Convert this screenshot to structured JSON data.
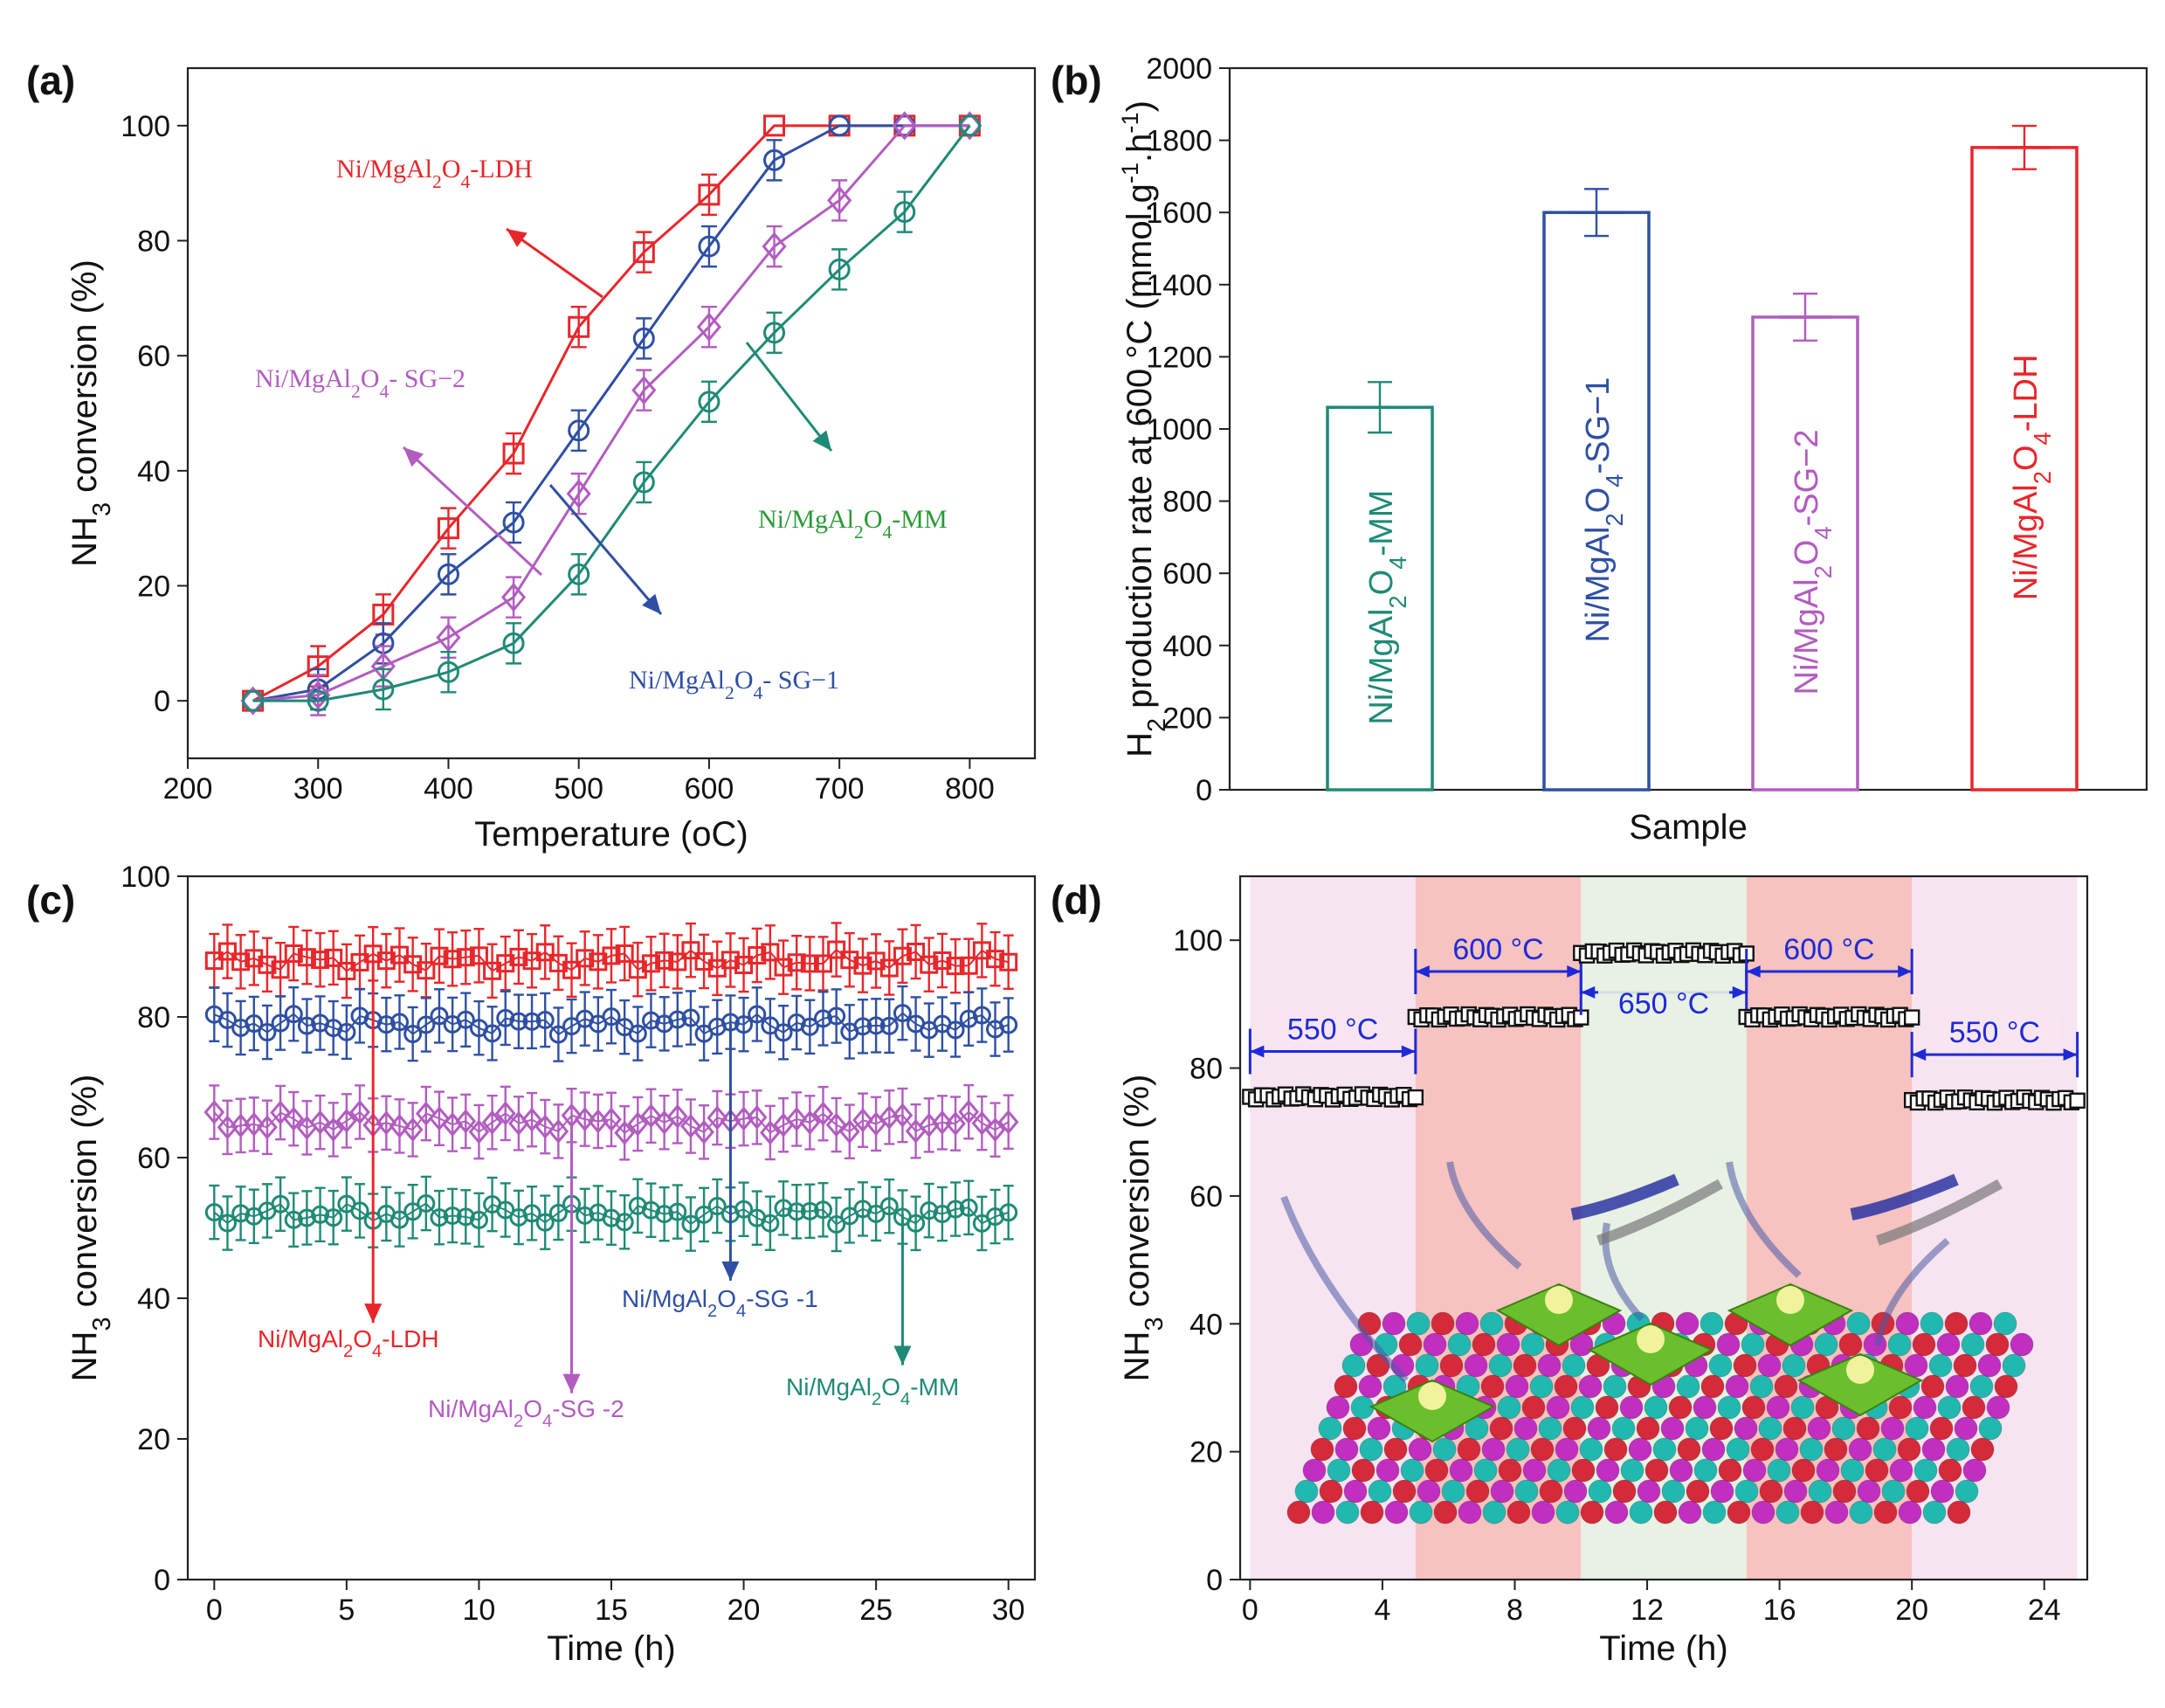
{
  "colors": {
    "red": "#e8262a",
    "blue": "#2e4fa3",
    "purple": "#b25cc0",
    "green": "#1f8a76",
    "black": "#111111",
    "temp_blue": "#1f2ad6",
    "zone_pink": "#f7e4f1",
    "zone_red": "#f6c3c1",
    "zone_green": "#e8f1e3"
  },
  "chart_data": [
    {
      "panel": "(a)",
      "type": "line",
      "xlabel": "Temperature (°C)",
      "ylabel": "NH3 conversion (%)",
      "xlim": [
        200,
        850
      ],
      "ylim": [
        -10,
        110
      ],
      "xticks": [
        "200",
        "300",
        "400",
        "500",
        "600",
        "700",
        "800"
      ],
      "yticks": [
        "0",
        "20",
        "40",
        "60",
        "80",
        "100"
      ],
      "x": [
        250,
        300,
        350,
        400,
        450,
        500,
        550,
        600,
        650,
        700,
        750,
        800
      ],
      "series": [
        {
          "name": "Ni/MgAl2O4-LDH",
          "color": "red",
          "marker": "square",
          "values": [
            0,
            6,
            15,
            30,
            43,
            65,
            78,
            88,
            100,
            100,
            100,
            100
          ]
        },
        {
          "name": "Ni/MgAl2O4- SG−1",
          "color": "blue",
          "marker": "circle",
          "values": [
            0,
            2,
            10,
            22,
            31,
            47,
            63,
            79,
            94,
            100,
            100,
            100
          ]
        },
        {
          "name": "Ni/MgAl2O4- SG−2",
          "color": "purple",
          "marker": "diamond",
          "values": [
            0,
            1,
            6,
            11,
            18,
            36,
            54,
            65,
            79,
            87,
            100,
            100
          ]
        },
        {
          "name": "Ni/MgAl2O4-MM",
          "color": "green",
          "marker": "circle",
          "values": [
            0,
            0,
            2,
            5,
            10,
            22,
            38,
            52,
            64,
            75,
            85,
            100
          ]
        }
      ],
      "annotations": [
        "Ni/MgAl2O4-LDH",
        "Ni/MgAl2O4- SG−2",
        "Ni/MgAl2O4-MM",
        "Ni/MgAl2O4- SG−1"
      ]
    },
    {
      "panel": "(b)",
      "type": "bar",
      "xlabel": "Sample",
      "ylabel": "H2 production rate at 600 °C (mmol.g-1.h-1)",
      "ylim": [
        0,
        2000
      ],
      "yticks": [
        "0",
        "200",
        "400",
        "600",
        "800",
        "1000",
        "1200",
        "1400",
        "1600",
        "1800",
        "2000"
      ],
      "categories": [
        "Ni/MgAl2O4-MM",
        "Ni/MgAl2O4-SG−1",
        "Ni/MgAl2O4-SG−2",
        "Ni/MgAl2O4-LDH"
      ],
      "values": [
        1060,
        1600,
        1310,
        1780
      ],
      "errors": [
        70,
        65,
        65,
        60
      ],
      "bar_colors": [
        "green",
        "blue",
        "purple",
        "red"
      ]
    },
    {
      "panel": "(c)",
      "type": "line",
      "xlabel": "Time (h)",
      "ylabel": "NH3 conversion (%)",
      "xlim": [
        -1,
        31
      ],
      "ylim": [
        0,
        100
      ],
      "xticks": [
        "0",
        "5",
        "10",
        "15",
        "20",
        "25",
        "30"
      ],
      "yticks": [
        "0",
        "20",
        "40",
        "60",
        "80",
        "100"
      ],
      "series": [
        {
          "name": "Ni/MgAl2O4-LDH",
          "color": "red",
          "marker": "square",
          "mean": 88
        },
        {
          "name": "Ni/MgAl2O4-SG -1",
          "color": "blue",
          "marker": "circle",
          "mean": 79
        },
        {
          "name": "Ni/MgAl2O4-SG -2",
          "color": "purple",
          "marker": "diamond",
          "mean": 65
        },
        {
          "name": "Ni/MgAl2O4-MM",
          "color": "green",
          "marker": "circle",
          "mean": 52
        }
      ],
      "annotations": [
        "Ni/MgAl2O4-LDH",
        "Ni/MgAl2O4-SG -2",
        "Ni/MgAl2O4-SG -1",
        "Ni/MgAl2O4-MM"
      ]
    },
    {
      "panel": "(d)",
      "type": "scatter",
      "xlabel": "Time (h)",
      "ylabel": "NH3 conversion (%)",
      "xlim": [
        -0.3,
        25.3
      ],
      "ylim": [
        0,
        110
      ],
      "xticks": [
        "0",
        "4",
        "8",
        "12",
        "16",
        "20",
        "24"
      ],
      "yticks": [
        "0",
        "20",
        "40",
        "60",
        "80",
        "100"
      ],
      "segments": [
        {
          "label": "550 °C",
          "x": [
            0,
            5
          ],
          "value": 75.5,
          "zone": "pink"
        },
        {
          "label": "600 °C",
          "x": [
            5,
            10
          ],
          "value": 88,
          "zone": "red"
        },
        {
          "label": "650 °C",
          "x": [
            10,
            15
          ],
          "value": 98,
          "zone": "green"
        },
        {
          "label": "600 °C",
          "x": [
            15,
            20
          ],
          "value": 88,
          "zone": "red"
        },
        {
          "label": "550 °C",
          "x": [
            20,
            25
          ],
          "value": 75,
          "zone": "pink"
        }
      ]
    }
  ]
}
